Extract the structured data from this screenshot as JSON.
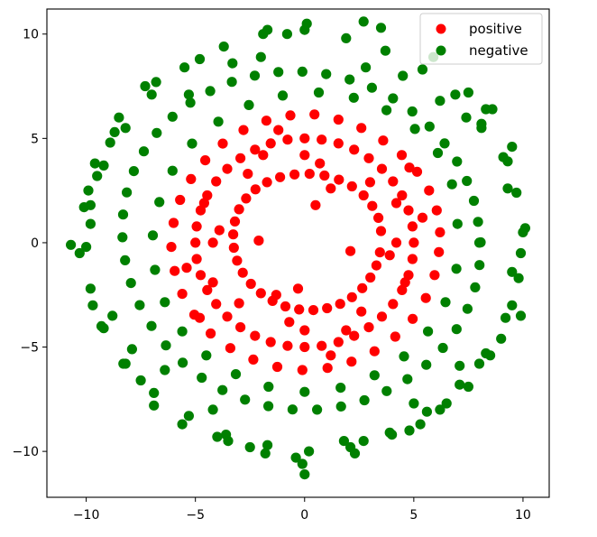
{
  "chart_data": {
    "type": "scatter",
    "title": "",
    "xlabel": "",
    "ylabel": "",
    "xlim": [
      -11.8,
      11.2
    ],
    "ylim": [
      -12.2,
      11.2
    ],
    "x_ticks": [
      -10,
      -5,
      0,
      5,
      10
    ],
    "y_ticks": [
      -10,
      -5,
      0,
      5,
      10
    ],
    "x_tick_labels": [
      "−10",
      "−5",
      "0",
      "5",
      "10"
    ],
    "y_tick_labels": [
      "−10",
      "−5",
      "0",
      "5",
      "10"
    ],
    "grid": false,
    "legend_position": "top-right",
    "series": [
      {
        "name": "positive",
        "color": "#ff0000",
        "points": [
          [
            5.0,
            0.0
          ],
          [
            4.94,
            0.78
          ],
          [
            4.76,
            1.55
          ],
          [
            4.46,
            2.27
          ],
          [
            4.05,
            2.94
          ],
          [
            3.54,
            3.54
          ],
          [
            2.94,
            4.05
          ],
          [
            2.27,
            4.46
          ],
          [
            1.55,
            4.76
          ],
          [
            0.78,
            4.94
          ],
          [
            0.0,
            5.0
          ],
          [
            -0.78,
            4.94
          ],
          [
            -1.55,
            4.76
          ],
          [
            -2.27,
            4.46
          ],
          [
            -2.94,
            4.05
          ],
          [
            -3.54,
            3.54
          ],
          [
            -4.05,
            2.94
          ],
          [
            -4.46,
            2.27
          ],
          [
            -4.76,
            1.55
          ],
          [
            -4.94,
            0.78
          ],
          [
            -5.0,
            0.0
          ],
          [
            -4.94,
            -0.78
          ],
          [
            -4.76,
            -1.55
          ],
          [
            -4.46,
            -2.27
          ],
          [
            -4.05,
            -2.94
          ],
          [
            -3.54,
            -3.54
          ],
          [
            -2.94,
            -4.05
          ],
          [
            -2.27,
            -4.46
          ],
          [
            -1.55,
            -4.76
          ],
          [
            -0.78,
            -4.94
          ],
          [
            0.0,
            -5.0
          ],
          [
            0.78,
            -4.94
          ],
          [
            1.55,
            -4.76
          ],
          [
            2.27,
            -4.46
          ],
          [
            2.94,
            -4.05
          ],
          [
            3.54,
            -3.54
          ],
          [
            4.05,
            -2.94
          ],
          [
            4.46,
            -2.27
          ],
          [
            4.76,
            -1.55
          ],
          [
            4.94,
            -0.78
          ],
          [
            3.5,
            0.56
          ],
          [
            3.38,
            1.19
          ],
          [
            3.1,
            1.76
          ],
          [
            2.7,
            2.27
          ],
          [
            2.17,
            2.7
          ],
          [
            1.57,
            3.02
          ],
          [
            0.91,
            3.22
          ],
          [
            0.23,
            3.3
          ],
          [
            -0.46,
            3.27
          ],
          [
            -1.12,
            3.14
          ],
          [
            -1.72,
            2.9
          ],
          [
            -2.25,
            2.56
          ],
          [
            -2.68,
            2.12
          ],
          [
            -3.0,
            1.6
          ],
          [
            -3.19,
            1.02
          ],
          [
            -3.27,
            0.4
          ],
          [
            -3.24,
            -0.24
          ],
          [
            -3.09,
            -0.86
          ],
          [
            -2.83,
            -1.44
          ],
          [
            -2.46,
            -1.97
          ],
          [
            -2.0,
            -2.42
          ],
          [
            -1.47,
            -2.79
          ],
          [
            -0.88,
            -3.05
          ],
          [
            -0.25,
            -3.2
          ],
          [
            0.4,
            -3.23
          ],
          [
            1.03,
            -3.14
          ],
          [
            1.63,
            -2.93
          ],
          [
            2.17,
            -2.61
          ],
          [
            2.64,
            -2.18
          ],
          [
            3.01,
            -1.67
          ],
          [
            3.29,
            -1.09
          ],
          [
            3.45,
            -0.46
          ],
          [
            6.2,
            0.5
          ],
          [
            6.05,
            1.55
          ],
          [
            5.7,
            2.5
          ],
          [
            5.15,
            3.4
          ],
          [
            4.45,
            4.2
          ],
          [
            3.6,
            4.9
          ],
          [
            2.6,
            5.5
          ],
          [
            1.55,
            5.9
          ],
          [
            0.45,
            6.15
          ],
          [
            -0.65,
            6.1
          ],
          [
            -1.75,
            5.85
          ],
          [
            -2.8,
            5.4
          ],
          [
            -3.75,
            4.75
          ],
          [
            -4.55,
            3.95
          ],
          [
            -5.2,
            3.05
          ],
          [
            -5.7,
            2.05
          ],
          [
            -6.0,
            0.95
          ],
          [
            -6.1,
            -0.2
          ],
          [
            -5.95,
            -1.35
          ],
          [
            -5.6,
            -2.45
          ],
          [
            -5.05,
            -3.45
          ],
          [
            -4.3,
            -4.35
          ],
          [
            -3.4,
            -5.05
          ],
          [
            -2.35,
            -5.6
          ],
          [
            -1.25,
            -5.95
          ],
          [
            -0.1,
            -6.1
          ],
          [
            1.05,
            -6.0
          ],
          [
            2.15,
            -5.7
          ],
          [
            3.2,
            -5.2
          ],
          [
            4.15,
            -4.5
          ],
          [
            4.95,
            -3.65
          ],
          [
            5.55,
            -2.65
          ],
          [
            5.95,
            -1.55
          ],
          [
            6.15,
            -0.45
          ],
          [
            4.2,
            1.9
          ],
          [
            -4.2,
            -1.9
          ],
          [
            1.9,
            -4.2
          ],
          [
            -1.9,
            4.2
          ],
          [
            0.7,
            3.8
          ],
          [
            -3.9,
            0.6
          ],
          [
            3.9,
            -0.6
          ],
          [
            -0.7,
            -3.8
          ],
          [
            2.6,
            -3.3
          ],
          [
            -2.6,
            3.3
          ],
          [
            3.0,
            2.9
          ],
          [
            -3.0,
            -2.9
          ],
          [
            0.5,
            1.8
          ],
          [
            -2.1,
            0.1
          ],
          [
            2.1,
            -0.4
          ],
          [
            -0.3,
            -2.2
          ],
          [
            1.2,
            2.6
          ],
          [
            -1.3,
            -2.5
          ],
          [
            5.4,
            1.2
          ],
          [
            -5.4,
            -1.2
          ],
          [
            1.2,
            -5.4
          ],
          [
            -1.2,
            5.4
          ],
          [
            4.6,
            -1.9
          ],
          [
            -4.6,
            1.9
          ],
          [
            -4.8,
            -3.6
          ],
          [
            4.8,
            3.6
          ],
          [
            0.0,
            -4.2
          ],
          [
            0.0,
            4.2
          ],
          [
            -4.2,
            0.0
          ],
          [
            4.2,
            0.0
          ]
        ]
      },
      {
        "name": "negative",
        "color": "#008000",
        "points": [
          [
            8.0,
            0.0
          ],
          [
            7.94,
            1.0
          ],
          [
            7.75,
            2.01
          ],
          [
            7.43,
            2.96
          ],
          [
            6.98,
            3.89
          ],
          [
            6.41,
            4.76
          ],
          [
            5.72,
            5.57
          ],
          [
            4.93,
            6.29
          ],
          [
            4.05,
            6.92
          ],
          [
            3.08,
            7.43
          ],
          [
            2.06,
            7.82
          ],
          [
            0.99,
            8.08
          ],
          [
            -0.1,
            8.2
          ],
          [
            -1.2,
            8.18
          ],
          [
            -2.28,
            8.01
          ],
          [
            -3.33,
            7.71
          ],
          [
            -4.32,
            7.27
          ],
          [
            -5.23,
            6.71
          ],
          [
            -6.05,
            6.04
          ],
          [
            -6.77,
            5.26
          ],
          [
            -7.36,
            4.38
          ],
          [
            -7.82,
            3.43
          ],
          [
            -8.14,
            2.41
          ],
          [
            -8.31,
            1.35
          ],
          [
            -8.34,
            0.26
          ],
          [
            -8.22,
            -0.84
          ],
          [
            -7.95,
            -1.93
          ],
          [
            -7.55,
            -2.99
          ],
          [
            -7.01,
            -3.99
          ],
          [
            -6.35,
            -4.92
          ],
          [
            -5.58,
            -5.75
          ],
          [
            -4.71,
            -6.47
          ],
          [
            -3.76,
            -7.06
          ],
          [
            -2.73,
            -7.52
          ],
          [
            -1.66,
            -7.83
          ],
          [
            -0.55,
            -7.99
          ],
          [
            0.57,
            -8.0
          ],
          [
            1.67,
            -7.85
          ],
          [
            2.74,
            -7.55
          ],
          [
            3.76,
            -7.11
          ],
          [
            4.71,
            -6.54
          ],
          [
            5.57,
            -5.85
          ],
          [
            6.33,
            -5.04
          ],
          [
            6.96,
            -4.14
          ],
          [
            7.46,
            -3.17
          ],
          [
            7.81,
            -2.14
          ],
          [
            8.01,
            -1.07
          ],
          [
            8.06,
            0.02
          ],
          [
            10.0,
            0.5
          ],
          [
            9.7,
            2.4
          ],
          [
            9.1,
            4.1
          ],
          [
            8.1,
            5.7
          ],
          [
            6.9,
            7.1
          ],
          [
            5.4,
            8.3
          ],
          [
            3.7,
            9.2
          ],
          [
            1.9,
            9.8
          ],
          [
            0.0,
            10.2
          ],
          [
            -1.9,
            10.0
          ],
          [
            -3.7,
            9.4
          ],
          [
            -5.5,
            8.4
          ],
          [
            -7.0,
            7.1
          ],
          [
            -8.2,
            5.5
          ],
          [
            -9.2,
            3.7
          ],
          [
            -9.8,
            1.8
          ],
          [
            -10.0,
            -0.2
          ],
          [
            -9.8,
            -2.2
          ],
          [
            -9.2,
            -4.1
          ],
          [
            -8.2,
            -5.8
          ],
          [
            -6.9,
            -7.2
          ],
          [
            -5.3,
            -8.3
          ],
          [
            -3.6,
            -9.2
          ],
          [
            -1.7,
            -9.7
          ],
          [
            0.2,
            -10.0
          ],
          [
            2.1,
            -9.8
          ],
          [
            3.9,
            -9.1
          ],
          [
            5.6,
            -8.1
          ],
          [
            7.1,
            -6.8
          ],
          [
            8.3,
            -5.3
          ],
          [
            9.2,
            -3.6
          ],
          [
            9.8,
            -1.7
          ],
          [
            7.0,
            0.9
          ],
          [
            6.75,
            2.8
          ],
          [
            6.1,
            4.3
          ],
          [
            5.05,
            5.45
          ],
          [
            3.75,
            6.35
          ],
          [
            2.25,
            6.95
          ],
          [
            0.65,
            7.2
          ],
          [
            -1.0,
            7.05
          ],
          [
            -2.55,
            6.6
          ],
          [
            -3.95,
            5.8
          ],
          [
            -5.15,
            4.75
          ],
          [
            -6.05,
            3.45
          ],
          [
            -6.65,
            1.95
          ],
          [
            -6.95,
            0.35
          ],
          [
            -6.85,
            -1.3
          ],
          [
            -6.4,
            -2.85
          ],
          [
            -5.6,
            -4.25
          ],
          [
            -4.5,
            -5.4
          ],
          [
            -3.15,
            -6.3
          ],
          [
            -1.65,
            -6.9
          ],
          [
            0.0,
            -7.15
          ],
          [
            1.65,
            -6.95
          ],
          [
            3.2,
            -6.35
          ],
          [
            4.55,
            -5.45
          ],
          [
            5.65,
            -4.25
          ],
          [
            6.45,
            -2.85
          ],
          [
            6.95,
            -1.25
          ],
          [
            -10.7,
            -0.1
          ],
          [
            -10.3,
            -0.5
          ],
          [
            -9.8,
            0.9
          ],
          [
            -10.1,
            1.7
          ],
          [
            9.9,
            -0.5
          ],
          [
            10.1,
            0.7
          ],
          [
            9.5,
            -1.4
          ],
          [
            9.3,
            2.6
          ],
          [
            9.3,
            3.9
          ],
          [
            9.5,
            4.6
          ],
          [
            9.5,
            -3.0
          ],
          [
            9.9,
            -3.5
          ],
          [
            9.0,
            -4.6
          ],
          [
            8.3,
            6.4
          ],
          [
            8.6,
            6.4
          ],
          [
            7.5,
            7.2
          ],
          [
            5.9,
            8.9
          ],
          [
            3.5,
            10.3
          ],
          [
            2.7,
            10.6
          ],
          [
            0.1,
            10.5
          ],
          [
            -0.8,
            10.0
          ],
          [
            -1.7,
            10.2
          ],
          [
            -4.8,
            8.8
          ],
          [
            -6.8,
            7.7
          ],
          [
            -7.3,
            7.5
          ],
          [
            -8.5,
            6.0
          ],
          [
            -8.7,
            5.3
          ],
          [
            -8.9,
            4.8
          ],
          [
            -9.6,
            3.8
          ],
          [
            -9.5,
            3.2
          ],
          [
            -9.9,
            2.5
          ],
          [
            -9.7,
            -3.0
          ],
          [
            -9.3,
            -4.0
          ],
          [
            -8.3,
            -5.8
          ],
          [
            -7.5,
            -6.6
          ],
          [
            -6.9,
            -7.8
          ],
          [
            -5.6,
            -8.7
          ],
          [
            -4.0,
            -9.3
          ],
          [
            -3.5,
            -9.5
          ],
          [
            -2.5,
            -9.8
          ],
          [
            -1.8,
            -10.1
          ],
          [
            -0.4,
            -10.3
          ],
          [
            0.0,
            -11.1
          ],
          [
            -0.1,
            -10.6
          ],
          [
            1.8,
            -9.5
          ],
          [
            2.3,
            -10.1
          ],
          [
            2.7,
            -9.5
          ],
          [
            4.0,
            -9.2
          ],
          [
            4.8,
            -9.0
          ],
          [
            5.3,
            -8.7
          ],
          [
            6.2,
            -8.0
          ],
          [
            6.5,
            -7.7
          ],
          [
            7.5,
            -6.9
          ],
          [
            8.0,
            -5.8
          ],
          [
            8.5,
            -5.4
          ],
          [
            8.1,
            5.5
          ],
          [
            7.4,
            6.0
          ],
          [
            -2.0,
            8.9
          ],
          [
            -3.3,
            8.6
          ],
          [
            -5.3,
            7.1
          ],
          [
            -7.9,
            -5.1
          ],
          [
            -6.4,
            -6.1
          ],
          [
            -4.2,
            -8.0
          ],
          [
            5.0,
            -7.7
          ],
          [
            7.1,
            -5.9
          ],
          [
            6.2,
            6.8
          ],
          [
            4.5,
            8.0
          ],
          [
            2.8,
            8.4
          ],
          [
            -8.8,
            -3.5
          ]
        ]
      }
    ]
  },
  "legend": {
    "items": [
      {
        "label": "positive",
        "color": "#ff0000"
      },
      {
        "label": "negative",
        "color": "#008000"
      }
    ]
  }
}
